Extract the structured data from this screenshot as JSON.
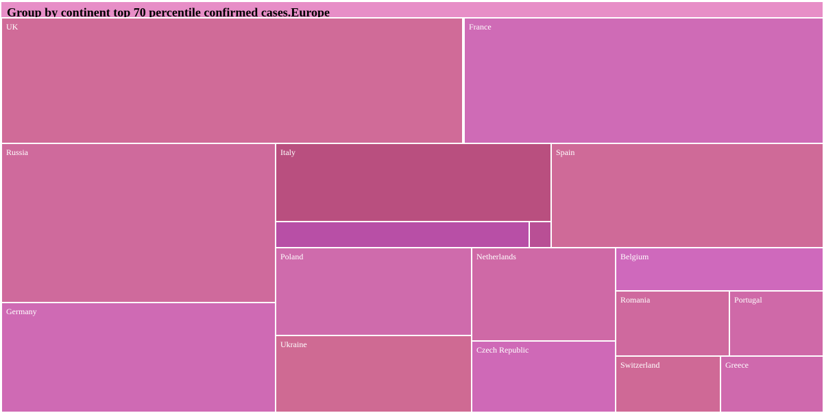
{
  "chart_data": {
    "type": "treemap",
    "title": "Group by continent top 70 percentile confirmed cases.Europe",
    "colors": {
      "title_band": "#e78ec7",
      "tile_border": "#ffffff"
    },
    "tiles": [
      {
        "name": "UK",
        "label": "UK",
        "color": "#d06b98"
      },
      {
        "name": "France",
        "label": "France",
        "color": "#cf6bb6"
      },
      {
        "name": "Russia",
        "label": "Russia",
        "color": "#cf6a9c"
      },
      {
        "name": "Germany",
        "label": "Germany",
        "color": "#cf6ab4"
      },
      {
        "name": "Italy",
        "label": "Italy",
        "color": "#b94f7f"
      },
      {
        "name": "Italy-sub-a",
        "label": "",
        "color": "#b84fa6"
      },
      {
        "name": "Italy-sub-b",
        "label": "",
        "color": "#b94f95"
      },
      {
        "name": "Spain",
        "label": "Spain",
        "color": "#cf6a98"
      },
      {
        "name": "Poland",
        "label": "Poland",
        "color": "#cf6bac"
      },
      {
        "name": "Ukraine",
        "label": "Ukraine",
        "color": "#cf6a93"
      },
      {
        "name": "Netherlands",
        "label": "Netherlands",
        "color": "#cf69a6"
      },
      {
        "name": "Czech Republic",
        "label": "Czech Republic",
        "color": "#cf69b7"
      },
      {
        "name": "Belgium",
        "label": "Belgium",
        "color": "#cf69bc"
      },
      {
        "name": "Romania",
        "label": "Romania",
        "color": "#cf699e"
      },
      {
        "name": "Portugal",
        "label": "Portugal",
        "color": "#cf69a8"
      },
      {
        "name": "Switzerland",
        "label": "Switzerland",
        "color": "#cf6996"
      },
      {
        "name": "Greece",
        "label": "Greece",
        "color": "#cf69ad"
      }
    ]
  }
}
